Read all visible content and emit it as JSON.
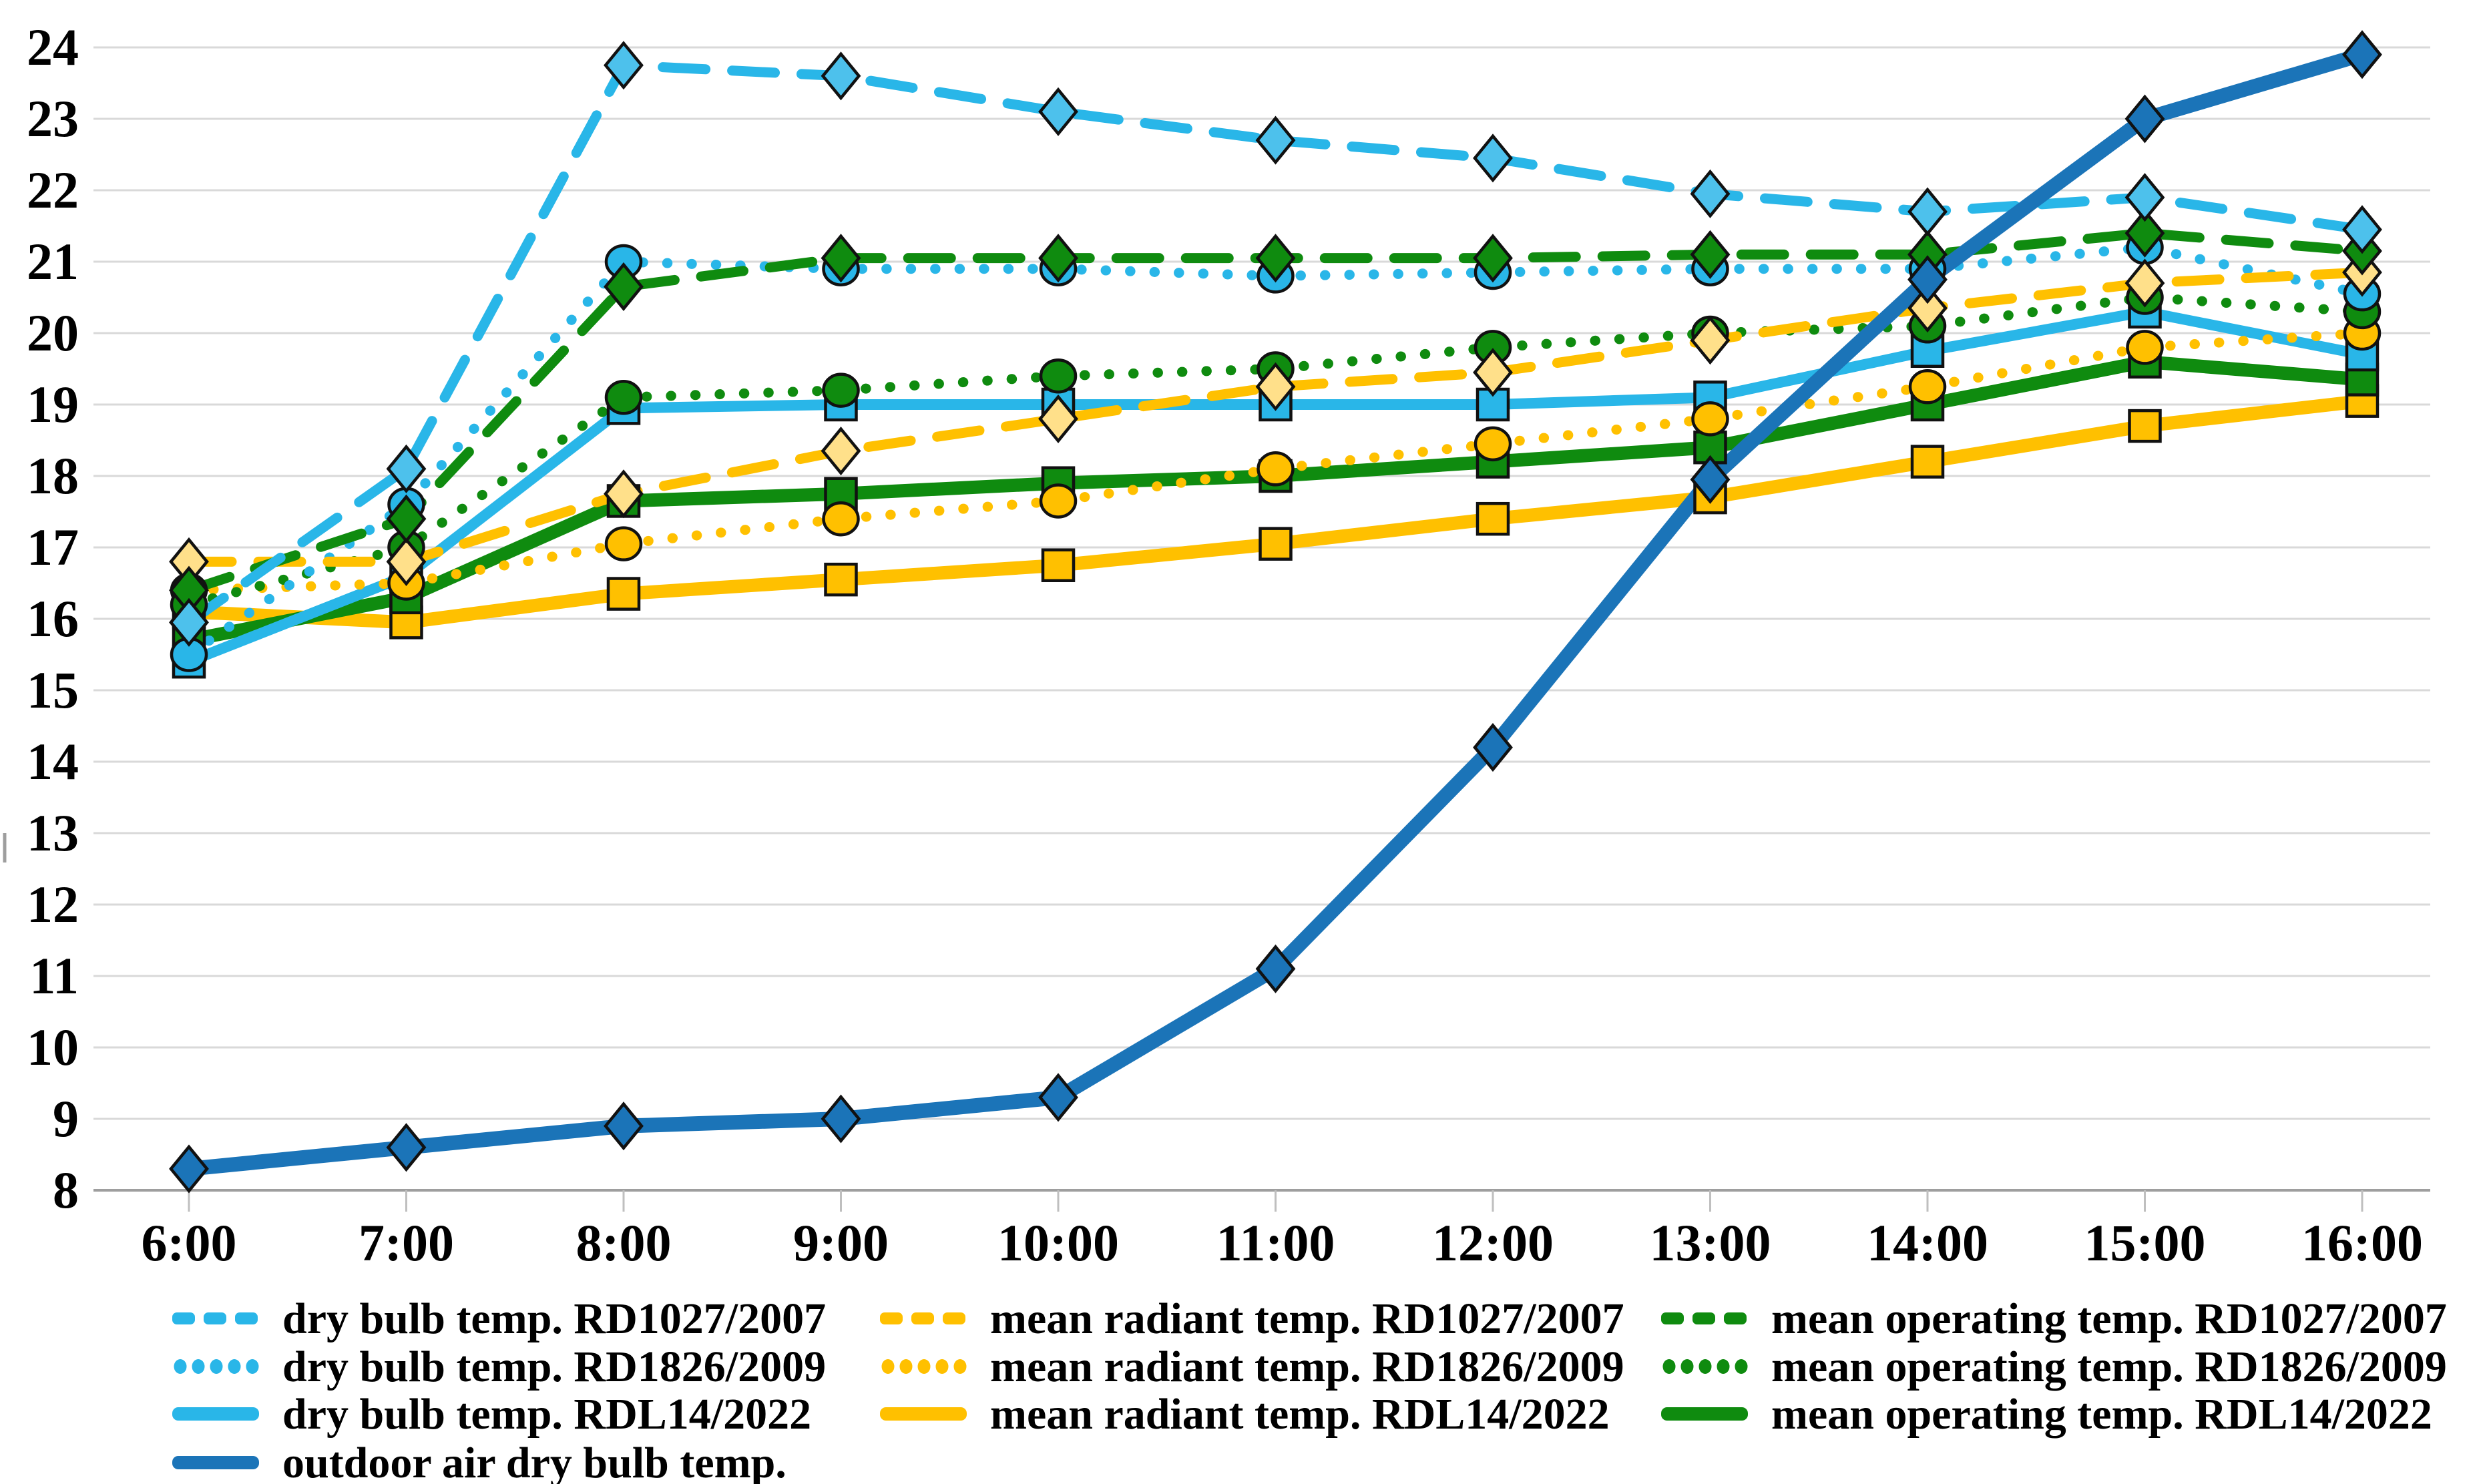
{
  "chart_data": {
    "type": "line",
    "title": "",
    "xlabel": "",
    "ylabel": "",
    "x_categories": [
      "6:00",
      "7:00",
      "8:00",
      "9:00",
      "10:00",
      "11:00",
      "12:00",
      "13:00",
      "14:00",
      "15:00",
      "16:00"
    ],
    "ylim": [
      8,
      24
    ],
    "ytick_step": 1,
    "ytick_labels": [
      "8",
      "9",
      "10",
      "11",
      "12",
      "13",
      "14",
      "15",
      "16",
      "17",
      "18",
      "19",
      "20",
      "21",
      "22",
      "23",
      "24"
    ],
    "grid": true,
    "legend_position": "bottom",
    "colors": {
      "cyan": "#29b6e8",
      "yellow": "#ffc000",
      "yellow_diamond_fill": "#ffe08a",
      "green": "#0f8b0f",
      "dark_blue": "#1b74b8",
      "gridline": "#d9d9d9",
      "axis_line": "#9e9e9e",
      "tick": "#bfbfbf",
      "marker_outline": "#111111"
    },
    "series": [
      {
        "id": "dry_bulb_rd1027",
        "legend_label": "dry bulb temp. RD1027/2007",
        "color": "#29b6e8",
        "line_style": "dashed",
        "marker": "diamond",
        "marker_fill": "#4dc1ec",
        "values": [
          15.95,
          18.1,
          23.75,
          23.6,
          23.1,
          22.7,
          22.45,
          21.95,
          21.7,
          21.9,
          21.45
        ]
      },
      {
        "id": "dry_bulb_rd1826",
        "legend_label": "dry bulb temp. RD1826/2009",
        "color": "#29b6e8",
        "line_style": "dotted",
        "marker": "circle",
        "marker_fill": "#29b6e8",
        "values": [
          15.5,
          17.6,
          21.0,
          20.9,
          20.9,
          20.8,
          20.85,
          20.9,
          20.9,
          21.2,
          20.55
        ]
      },
      {
        "id": "dry_bulb_rdl14",
        "legend_label": "dry bulb temp. RDL14/2022",
        "color": "#29b6e8",
        "line_style": "solid",
        "marker": "square",
        "marker_fill": "#29b6e8",
        "values": [
          15.4,
          16.6,
          18.95,
          19.0,
          19.0,
          19.0,
          19.0,
          19.1,
          19.75,
          20.3,
          19.7
        ]
      },
      {
        "id": "mean_radiant_rd1027",
        "legend_label": "mean radiant temp. RD1027/2007",
        "color": "#ffc000",
        "line_style": "dashed",
        "marker": "diamond",
        "marker_fill": "#ffe08a",
        "values": [
          16.8,
          16.8,
          17.75,
          18.35,
          18.8,
          19.25,
          19.45,
          19.9,
          20.35,
          20.7,
          20.85
        ]
      },
      {
        "id": "mean_radiant_rd1826",
        "legend_label": "mean radiant temp. RD1826/2009",
        "color": "#ffc000",
        "line_style": "dotted",
        "marker": "circle",
        "marker_fill": "#ffc000",
        "values": [
          16.4,
          16.5,
          17.05,
          17.4,
          17.65,
          18.1,
          18.45,
          18.8,
          19.25,
          19.8,
          20.0
        ]
      },
      {
        "id": "mean_radiant_rdl14",
        "legend_label": "mean radiant temp. RDL14/2022",
        "color": "#ffc000",
        "line_style": "solid",
        "marker": "square",
        "marker_fill": "#ffc000",
        "values": [
          16.1,
          15.95,
          16.35,
          16.55,
          16.75,
          17.05,
          17.4,
          17.7,
          18.2,
          18.7,
          19.05
        ]
      },
      {
        "id": "mean_operating_rd1027",
        "legend_label": "mean operating temp. RD1027/2007",
        "color": "#0f8b0f",
        "line_style": "dashed",
        "marker": "diamond",
        "marker_fill": "#0f8b0f",
        "values": [
          16.4,
          17.4,
          20.65,
          21.05,
          21.05,
          21.05,
          21.05,
          21.1,
          21.1,
          21.4,
          21.15
        ]
      },
      {
        "id": "mean_operating_rd1826",
        "legend_label": "mean operating temp. RD1826/2009",
        "color": "#0f8b0f",
        "line_style": "dotted",
        "marker": "circle",
        "marker_fill": "#0f8b0f",
        "values": [
          16.2,
          17.0,
          19.1,
          19.2,
          19.4,
          19.5,
          19.8,
          20.0,
          20.1,
          20.5,
          20.3
        ]
      },
      {
        "id": "mean_operating_rdl14",
        "legend_label": "mean operating temp. RDL14/2022",
        "color": "#0f8b0f",
        "line_style": "solid",
        "marker": "square",
        "marker_fill": "#0f8b0f",
        "values": [
          15.7,
          16.3,
          17.65,
          17.75,
          17.9,
          18.0,
          18.2,
          18.4,
          19.0,
          19.6,
          19.35
        ]
      },
      {
        "id": "outdoor",
        "legend_label": "outdoor air dry bulb temp.",
        "color": "#1b74b8",
        "line_style": "solid",
        "marker": "diamond",
        "marker_fill": "#1b74b8",
        "values": [
          8.3,
          8.6,
          8.9,
          9.0,
          9.3,
          11.1,
          14.2,
          17.95,
          20.75,
          23.0,
          23.9
        ]
      }
    ],
    "draw_order": [
      "mean_radiant_rdl14",
      "mean_operating_rdl14",
      "dry_bulb_rdl14",
      "mean_radiant_rd1826",
      "mean_operating_rd1826",
      "dry_bulb_rd1826",
      "mean_radiant_rd1027",
      "mean_operating_rd1027",
      "dry_bulb_rd1027",
      "outdoor"
    ],
    "legend_columns": [
      [
        "dry_bulb_rd1027",
        "dry_bulb_rd1826",
        "dry_bulb_rdl14",
        "outdoor"
      ],
      [
        "mean_radiant_rd1027",
        "mean_radiant_rd1826",
        "mean_radiant_rdl14"
      ],
      [
        "mean_operating_rd1027",
        "mean_operating_rd1826",
        "mean_operating_rdl14"
      ]
    ]
  }
}
